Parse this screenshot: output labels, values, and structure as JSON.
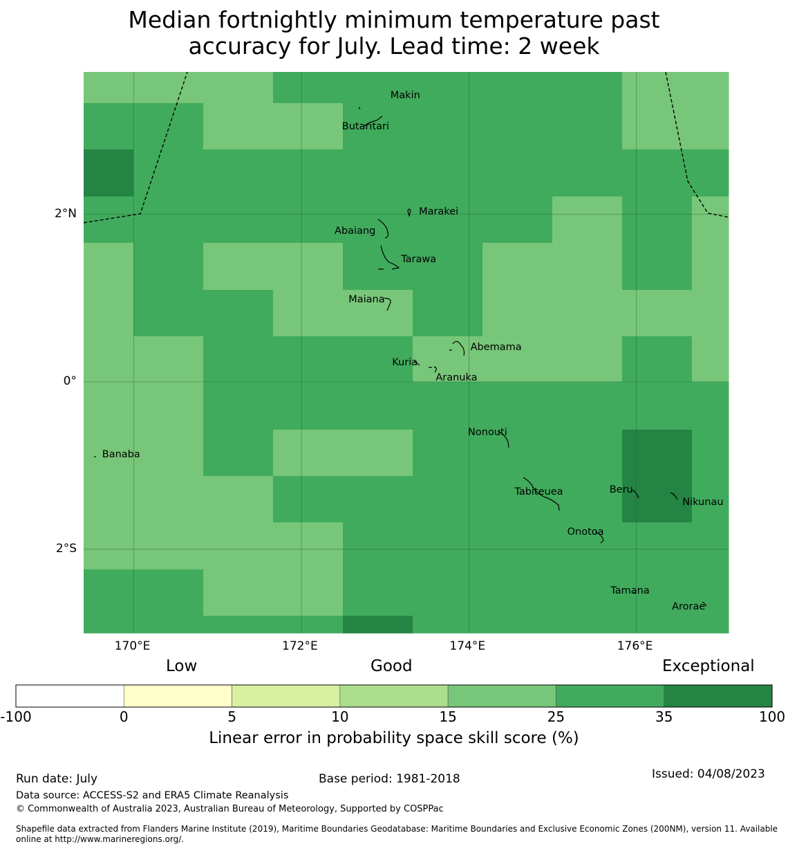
{
  "title": {
    "line1": "Median fortnightly minimum temperature past",
    "line2": "accuracy for July. Lead time: 2 week"
  },
  "map": {
    "extent": {
      "lon": [
        169.4,
        177.1
      ],
      "lat": [
        -3.0,
        3.7
      ]
    },
    "lon_ticks": [
      {
        "value": 170,
        "label": "170°E"
      },
      {
        "value": 172,
        "label": "172°E"
      },
      {
        "value": 174,
        "label": "174°E"
      },
      {
        "value": 176,
        "label": "176°E"
      }
    ],
    "lat_ticks": [
      {
        "value": 2,
        "label": "2°N"
      },
      {
        "value": 0,
        "label": "0°"
      },
      {
        "value": -2,
        "label": "2°S"
      }
    ],
    "cell_colors": {
      "a": "#78c679",
      "b": "#41ab5d",
      "c": "#238443"
    },
    "grid_rows": [
      "aaabbbbbaa",
      "bbaabbbbaa",
      "cbbbbbbbbb",
      "bbbbbbbaba",
      "abaabbaaba",
      "abbaabaaaa",
      "aabbbaaaba",
      "aabbbbbbbb",
      "aabaabbbcb",
      "aaabbbbbcb",
      "aaaabbbbbb",
      "bbaabbbbbb",
      "bbbbcbbbbb"
    ],
    "islands": [
      {
        "name": "Makin",
        "lon": 172.98,
        "lat": 3.37
      },
      {
        "name": "Butaritari",
        "lon": 172.79,
        "lat": 3.1
      },
      {
        "name": "Marakei",
        "lon": 173.28,
        "lat": 2.0
      },
      {
        "name": "Abaiang",
        "lon": 172.85,
        "lat": 1.82
      },
      {
        "name": "Tarawa",
        "lon": 173.0,
        "lat": 1.43
      },
      {
        "name": "Maiana",
        "lon": 173.0,
        "lat": 0.95
      },
      {
        "name": "Abemama",
        "lon": 173.87,
        "lat": 0.41
      },
      {
        "name": "Kuria",
        "lon": 173.38,
        "lat": 0.23
      },
      {
        "name": "Aranuka",
        "lon": 173.62,
        "lat": 0.16
      },
      {
        "name": "Banaba",
        "lon": 169.53,
        "lat": -0.87
      },
      {
        "name": "Nonouti",
        "lon": 174.41,
        "lat": -0.65
      },
      {
        "name": "Tabiteuea",
        "lon": 174.85,
        "lat": -1.35
      },
      {
        "name": "Beru",
        "lon": 176.0,
        "lat": -1.32
      },
      {
        "name": "Nikunau",
        "lon": 176.45,
        "lat": -1.37
      },
      {
        "name": "Onotoa",
        "lon": 175.57,
        "lat": -1.83
      },
      {
        "name": "Tamana",
        "lon": 175.98,
        "lat": -2.5
      },
      {
        "name": "Arorae",
        "lon": 176.82,
        "lat": -2.65
      }
    ]
  },
  "legend": {
    "quality_labels": [
      "Low",
      "Good",
      "Exceptional"
    ],
    "bins": [
      {
        "from": -100,
        "to": 0,
        "color": "#ffffff"
      },
      {
        "from": 0,
        "to": 5,
        "color": "#ffffcc"
      },
      {
        "from": 5,
        "to": 10,
        "color": "#d9f0a3"
      },
      {
        "from": 10,
        "to": 15,
        "color": "#addd8e"
      },
      {
        "from": 15,
        "to": 25,
        "color": "#78c679"
      },
      {
        "from": 25,
        "to": 35,
        "color": "#41ab5d"
      },
      {
        "from": 35,
        "to": 100,
        "color": "#238443"
      }
    ],
    "tick_labels": [
      "-100",
      "0",
      "5",
      "10",
      "15",
      "25",
      "35",
      "100"
    ],
    "axis_label": "Linear error in probability space skill score (%)"
  },
  "footer": {
    "run_date": "Run date: July",
    "base_period": "Base period: 1981-2018",
    "issued": "Issued: 04/08/2023",
    "data_source": "Data source: ACCESS-S2 and ERA5 Climate Reanalysis",
    "copyright": "© Commonwealth of Australia 2023, Australian Bureau of Meteorology, Supported by COSPPac",
    "shapefile_line1": "Shapefile data extracted from Flanders Marine Institute (2019), Maritime Boundaries Geodatabase: Maritime Boundaries and Exclusive Economic Zones (200NM), version 11. Available",
    "shapefile_line2": "online at http://www.marineregions.org/."
  }
}
